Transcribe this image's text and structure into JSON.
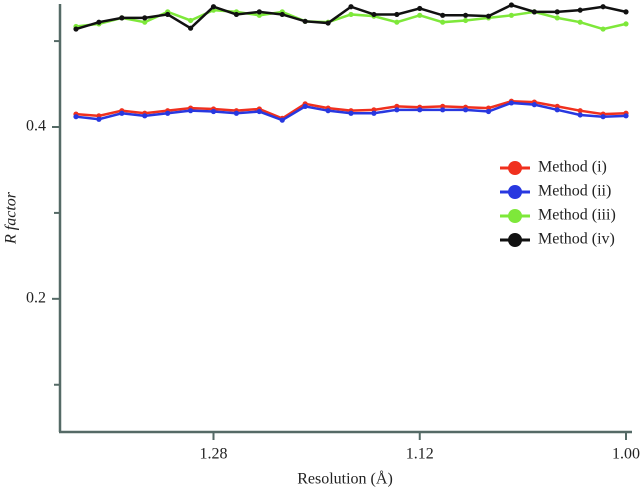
{
  "chart_data": {
    "type": "line",
    "x_label": "Resolution (Å)",
    "y_label": "R factor",
    "categories": [
      null,
      null,
      null,
      null,
      null,
      null,
      "1.28",
      null,
      null,
      null,
      null,
      null,
      null,
      null,
      null,
      "1.12",
      null,
      null,
      null,
      null,
      null,
      null,
      null,
      null,
      "1.00"
    ],
    "ylim": [
      0.045,
      0.542
    ],
    "yticks": [
      0.2,
      0.4
    ],
    "yminor_ticks": [
      0.1,
      0.3,
      0.5
    ],
    "legend": "right",
    "series": [
      {
        "name": "Method (i)",
        "color": "#f0301e",
        "values": [
          0.415,
          0.413,
          0.419,
          0.416,
          0.419,
          0.422,
          0.421,
          0.419,
          0.421,
          0.41,
          0.427,
          0.422,
          0.419,
          0.42,
          0.424,
          0.423,
          0.424,
          0.423,
          0.422,
          0.43,
          0.429,
          0.424,
          0.419,
          0.415,
          0.416
        ]
      },
      {
        "name": "Method (ii)",
        "color": "#2838e0",
        "values": [
          0.412,
          0.409,
          0.416,
          0.413,
          0.416,
          0.419,
          0.418,
          0.416,
          0.418,
          0.408,
          0.424,
          0.419,
          0.416,
          0.416,
          0.42,
          0.42,
          0.42,
          0.42,
          0.418,
          0.428,
          0.426,
          0.42,
          0.414,
          0.412,
          0.413
        ]
      },
      {
        "name": "Method (iii)",
        "color": "#7ee83a",
        "values": [
          0.517,
          0.52,
          0.527,
          0.522,
          0.534,
          0.524,
          0.536,
          0.534,
          0.53,
          0.534,
          0.523,
          0.522,
          0.531,
          0.529,
          0.522,
          0.53,
          0.522,
          0.524,
          0.527,
          0.53,
          0.534,
          0.527,
          0.522,
          0.514,
          0.52
        ]
      },
      {
        "name": "Method (iv)",
        "color": "#111111",
        "values": [
          0.514,
          0.522,
          0.527,
          0.527,
          0.531,
          0.515,
          0.54,
          0.531,
          0.534,
          0.531,
          0.523,
          0.521,
          0.54,
          0.531,
          0.531,
          0.538,
          0.53,
          0.53,
          0.529,
          0.542,
          0.534,
          0.534,
          0.536,
          0.54,
          0.534
        ]
      }
    ]
  }
}
